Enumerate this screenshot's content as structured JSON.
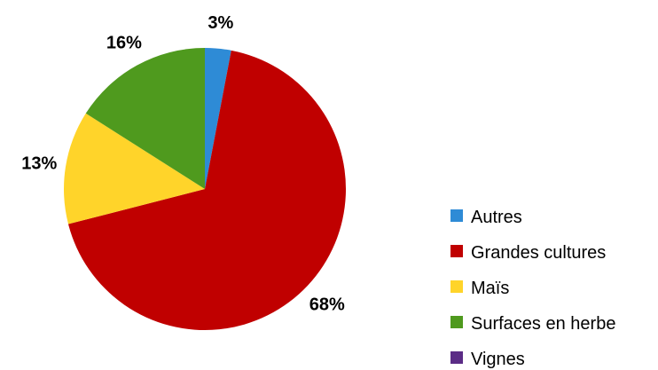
{
  "chart_data": {
    "type": "pie",
    "title": "",
    "legend_position": "bottom-right",
    "slices": [
      {
        "name": "Autres",
        "value": 3,
        "label": "3%",
        "color": "#2e8bd6"
      },
      {
        "name": "Grandes cultures",
        "value": 68,
        "label": "68%",
        "color": "#c00000"
      },
      {
        "name": "Maïs",
        "value": 13,
        "label": "13%",
        "color": "#ffd42a"
      },
      {
        "name": "Surfaces en herbe",
        "value": 16,
        "label": "16%",
        "color": "#4f9a1e"
      },
      {
        "name": "Vignes",
        "value": 0,
        "label": "",
        "color": "#5b2c86"
      }
    ]
  }
}
